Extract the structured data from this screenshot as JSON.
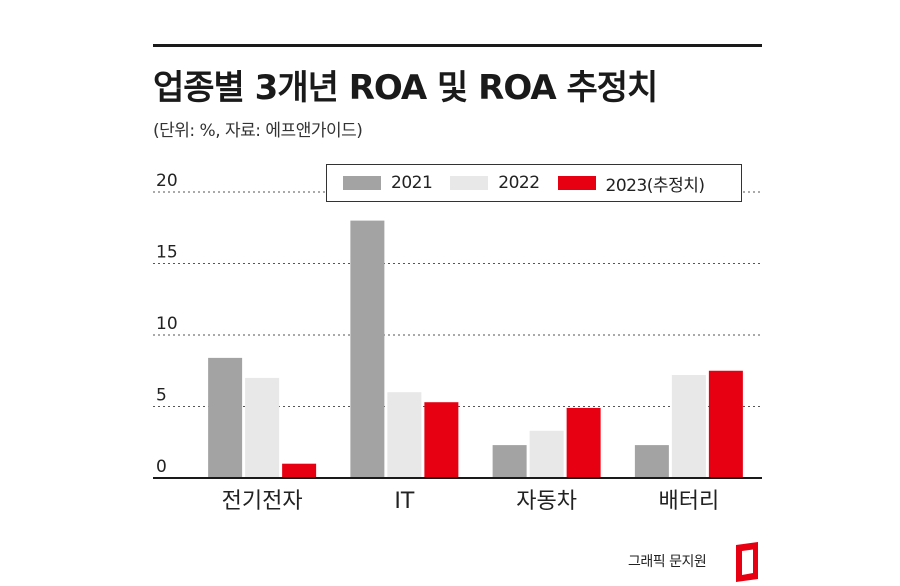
{
  "header": {
    "title": "업종별 3개년 ROA 및 ROA 추정치",
    "subtitle": "(단위: %, 자료: 에프앤가이드)"
  },
  "credit": {
    "text": "그래픽 문지원"
  },
  "colors": {
    "2021": "#a3a3a3",
    "2022": "#e8e8e8",
    "2023": "#e60012",
    "rule": "#1a1a1a"
  },
  "chart_data": {
    "type": "bar",
    "categories": [
      "전기전자",
      "IT",
      "자동차",
      "배터리"
    ],
    "series": [
      {
        "name": "2021",
        "values": [
          8.4,
          18.0,
          2.3,
          2.3
        ]
      },
      {
        "name": "2022",
        "values": [
          7.0,
          6.0,
          3.3,
          7.2
        ]
      },
      {
        "name": "2023(추정치)",
        "values": [
          1.0,
          5.3,
          4.9,
          7.5
        ]
      }
    ],
    "yticks": [
      "0",
      "5",
      "10",
      "15",
      "20"
    ],
    "ylim": [
      0,
      20
    ],
    "grid": "dotted horizontal",
    "legend": "top-right"
  }
}
